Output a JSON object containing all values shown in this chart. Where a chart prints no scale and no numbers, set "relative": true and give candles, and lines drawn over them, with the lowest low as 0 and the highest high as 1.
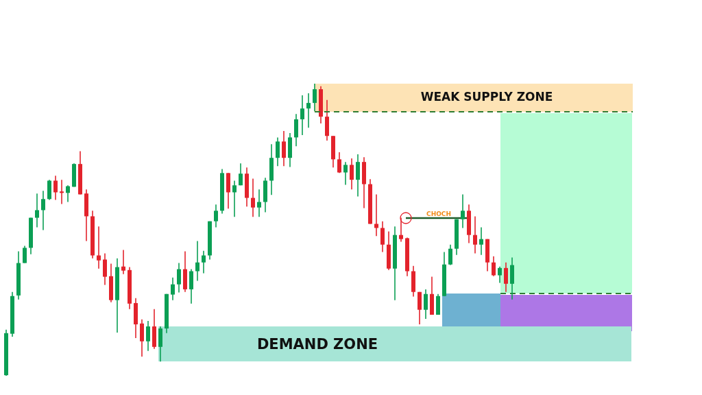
{
  "chart_data": {
    "type": "candlestick",
    "relative": true,
    "categories": [
      null,
      null,
      null,
      null,
      null,
      null,
      null,
      null,
      null,
      null,
      null,
      null,
      null,
      null,
      null,
      null,
      null,
      null,
      null,
      null,
      null,
      null,
      null,
      null,
      null,
      null,
      null,
      null,
      null,
      null,
      null,
      null,
      null,
      null,
      null,
      null,
      null,
      null,
      null,
      null,
      null,
      null,
      null,
      null,
      null,
      null,
      null,
      null,
      null,
      null,
      null,
      null,
      null,
      null,
      null,
      null,
      null,
      null,
      null,
      null,
      null,
      null,
      null,
      null,
      null,
      null,
      null,
      null,
      null,
      null,
      null,
      null,
      null,
      null,
      null,
      null,
      null,
      null,
      null,
      null,
      null,
      null,
      null
    ],
    "ohlc": [
      [
        0.002,
        0.158,
        0,
        0.146
      ],
      [
        0.144,
        0.287,
        0.134,
        0.273
      ],
      [
        0.275,
        0.426,
        0.261,
        0.386
      ],
      [
        0.386,
        0.445,
        0.386,
        0.438
      ],
      [
        0.438,
        0.541,
        0.416,
        0.541
      ],
      [
        0.541,
        0.624,
        0.508,
        0.567
      ],
      [
        0.567,
        0.633,
        0.499,
        0.605
      ],
      [
        0.605,
        0.671,
        0.602,
        0.668
      ],
      [
        0.668,
        0.685,
        0.602,
        0.628
      ],
      [
        0.631,
        0.671,
        0.588,
        0.626
      ],
      [
        0.626,
        0.652,
        0.595,
        0.649
      ],
      [
        0.647,
        0.727,
        0.647,
        0.725
      ],
      [
        0.725,
        0.769,
        0.621,
        0.621
      ],
      [
        0.624,
        0.638,
        0.461,
        0.546
      ],
      [
        0.546,
        0.565,
        0.402,
        0.412
      ],
      [
        0.412,
        0.511,
        0.367,
        0.395
      ],
      [
        0.398,
        0.419,
        0.311,
        0.339
      ],
      [
        0.341,
        0.384,
        0.252,
        0.259
      ],
      [
        0.259,
        0.402,
        0.148,
        0.372
      ],
      [
        0.374,
        0.431,
        0.348,
        0.36
      ],
      [
        0.362,
        0.372,
        0.228,
        0.247
      ],
      [
        0.249,
        0.266,
        0.129,
        0.176
      ],
      [
        0.179,
        0.193,
        0.066,
        0.118
      ],
      [
        0.118,
        0.188,
        0.085,
        0.169
      ],
      [
        0.169,
        0.228,
        0.092,
        0.099
      ],
      [
        0.099,
        0.169,
        0.049,
        0.162
      ],
      [
        0.162,
        0.28,
        0.146,
        0.28
      ],
      [
        0.278,
        0.336,
        0.259,
        0.313
      ],
      [
        0.313,
        0.386,
        0.285,
        0.365
      ],
      [
        0.365,
        0.426,
        0.287,
        0.296
      ],
      [
        0.296,
        0.365,
        0.247,
        0.358
      ],
      [
        0.358,
        0.461,
        0.325,
        0.388
      ],
      [
        0.388,
        0.428,
        0.351,
        0.412
      ],
      [
        0.412,
        0.529,
        0.398,
        0.529
      ],
      [
        0.529,
        0.586,
        0.508,
        0.565
      ],
      [
        0.565,
        0.708,
        0.555,
        0.694
      ],
      [
        0.694,
        0.694,
        0.572,
        0.628
      ],
      [
        0.628,
        0.668,
        0.544,
        0.652
      ],
      [
        0.652,
        0.727,
        0.652,
        0.692
      ],
      [
        0.692,
        0.713,
        0.579,
        0.609
      ],
      [
        0.609,
        0.675,
        0.544,
        0.576
      ],
      [
        0.576,
        0.638,
        0.544,
        0.595
      ],
      [
        0.595,
        0.678,
        0.56,
        0.668
      ],
      [
        0.668,
        0.793,
        0.619,
        0.746
      ],
      [
        0.746,
        0.816,
        0.718,
        0.802
      ],
      [
        0.802,
        0.838,
        0.718,
        0.746
      ],
      [
        0.746,
        0.831,
        0.715,
        0.816
      ],
      [
        0.816,
        0.896,
        0.786,
        0.878
      ],
      [
        0.878,
        0.96,
        0.824,
        0.915
      ],
      [
        0.915,
        0.967,
        0.849,
        0.934
      ],
      [
        0.934,
        1,
        0.906,
        0.981
      ],
      [
        0.981,
        0.991,
        0.864,
        0.887
      ],
      [
        0.887,
        0.944,
        0.805,
        0.821
      ],
      [
        0.821,
        0.821,
        0.713,
        0.741
      ],
      [
        0.741,
        0.765,
        0.694,
        0.696
      ],
      [
        0.696,
        0.732,
        0.654,
        0.722
      ],
      [
        0.722,
        0.744,
        0.638,
        0.671
      ],
      [
        0.671,
        0.758,
        0.614,
        0.732
      ],
      [
        0.732,
        0.748,
        0.574,
        0.656
      ],
      [
        0.656,
        0.673,
        0.52,
        0.52
      ],
      [
        0.52,
        0.621,
        0.478,
        0.506
      ],
      [
        0.506,
        0.529,
        0.424,
        0.449
      ],
      [
        0.449,
        0.494,
        0.362,
        0.367
      ],
      [
        0.367,
        0.511,
        0.259,
        0.482
      ],
      [
        0.482,
        0.541,
        0.459,
        0.468
      ],
      [
        0.471,
        0.473,
        0.341,
        0.358
      ],
      [
        0.358,
        0.376,
        0.271,
        0.287
      ],
      [
        0.287,
        0.287,
        0.176,
        0.226
      ],
      [
        0.226,
        0.296,
        0.195,
        0.28
      ],
      [
        0.28,
        0.339,
        0.209,
        0.209
      ],
      [
        0.209,
        0.28,
        0.209,
        0.273
      ],
      [
        0.273,
        0.424,
        0.273,
        0.381
      ],
      [
        0.381,
        0.449,
        0.379,
        0.435
      ],
      [
        0.435,
        0.536,
        0.414,
        0.536
      ],
      [
        0.536,
        0.621,
        0.506,
        0.565
      ],
      [
        0.565,
        0.586,
        0.454,
        0.482
      ],
      [
        0.482,
        0.546,
        0.419,
        0.449
      ],
      [
        0.449,
        0.508,
        0.414,
        0.468
      ],
      [
        0.468,
        0.468,
        0.358,
        0.388
      ],
      [
        0.388,
        0.409,
        0.341,
        0.344
      ],
      [
        0.344,
        0.374,
        0.318,
        0.369
      ],
      [
        0.369,
        0.388,
        0.287,
        0.315
      ],
      [
        0.315,
        0.405,
        0.261,
        0.379
      ]
    ],
    "colors": [
      "#0b9f54",
      "#0b9f54",
      "#0b9f54",
      "#0b9f54",
      "#0b9f54",
      "#0b9f54",
      "#0b9f54",
      "#0b9f54",
      "#e3232c",
      "#e3232c",
      "#0b9f54",
      "#0b9f54",
      "#e3232c",
      "#e3232c",
      "#e3232c",
      "#e3232c",
      "#e3232c",
      "#e3232c",
      "#0b9f54",
      "#e3232c",
      "#e3232c",
      "#e3232c",
      "#e3232c",
      "#0b9f54",
      "#e3232c",
      "#0b9f54",
      "#0b9f54",
      "#0b9f54",
      "#0b9f54",
      "#e3232c",
      "#0b9f54",
      "#0b9f54",
      "#0b9f54",
      "#0b9f54",
      "#0b9f54",
      "#0b9f54",
      "#e3232c",
      "#0b9f54",
      "#0b9f54",
      "#e3232c",
      "#e3232c",
      "#0b9f54",
      "#0b9f54",
      "#0b9f54",
      "#0b9f54",
      "#e3232c",
      "#0b9f54",
      "#0b9f54",
      "#0b9f54",
      "#0b9f54",
      "#0b9f54",
      "#e3232c",
      "#e3232c",
      "#e3232c",
      "#e3232c",
      "#0b9f54",
      "#e3232c",
      "#0b9f54",
      "#e3232c",
      "#e3232c",
      "#e3232c",
      "#e3232c",
      "#e3232c",
      "#0b9f54",
      "#e3232c",
      "#e3232c",
      "#e3232c",
      "#e3232c",
      "#0b9f54",
      "#e3232c",
      "#0b9f54",
      "#0b9f54",
      "#0b9f54",
      "#0b9f54",
      "#0b9f54",
      "#e3232c",
      "#e3232c",
      "#0b9f54",
      "#e3232c",
      "#e3232c",
      "#0b9f54",
      "#e3232c",
      "#0b9f54"
    ],
    "ref_lines": [
      {
        "axis": "y",
        "value": 0.904,
        "color": "#2e7d32",
        "line_style": "dashed"
      }
    ],
    "annotations": [
      "WEAK SUPPLY ZONE",
      "DEMAND ZONE",
      "CHOCH"
    ]
  }
}
